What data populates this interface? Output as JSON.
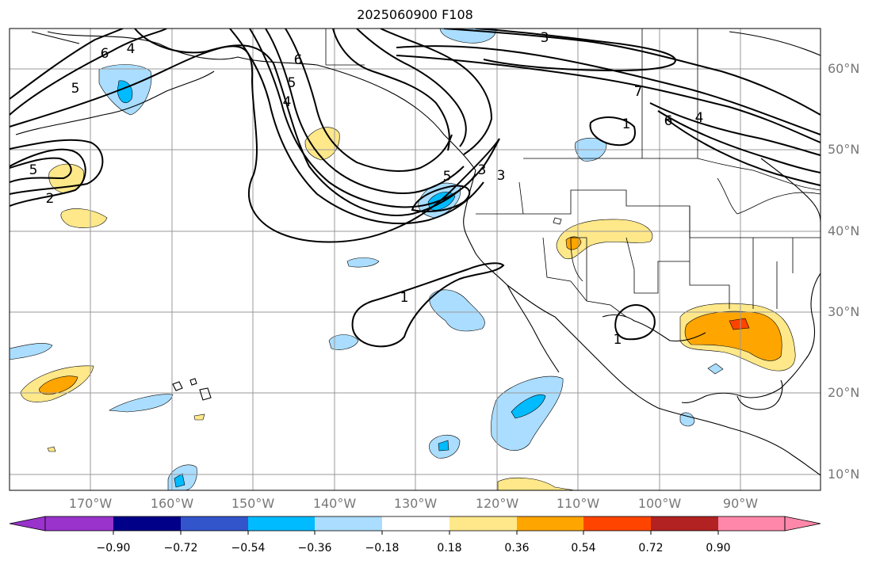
{
  "title": "2025060900 F108",
  "map": {
    "projection": "equirectangular",
    "lat_ticks": [
      "60°N",
      "50°N",
      "40°N",
      "30°N",
      "20°N",
      "10°N"
    ],
    "lon_ticks": [
      "170°W",
      "160°W",
      "150°W",
      "140°W",
      "130°W",
      "120°W",
      "110°W",
      "100°W",
      "90°W"
    ],
    "contour_line_color": "#000000",
    "contour_labels": [
      "6",
      "5",
      "4",
      "3",
      "5",
      "2",
      "6",
      "5",
      "4",
      "3",
      "5",
      "3",
      "1",
      "1",
      "1",
      "7",
      "6",
      "4"
    ]
  },
  "colorbar": {
    "ticks": [
      "−0.90",
      "−0.72",
      "−0.54",
      "−0.36",
      "−0.18",
      "0.18",
      "0.36",
      "0.54",
      "0.72",
      "0.90"
    ],
    "colors": [
      "#9933cc",
      "#000088",
      "#3355cc",
      "#00bbff",
      "#aaddff",
      "#ffffff",
      "#ffe88a",
      "#ffa500",
      "#ff4400",
      "#b22222",
      "#ff88aa"
    ],
    "extend": "both"
  }
}
